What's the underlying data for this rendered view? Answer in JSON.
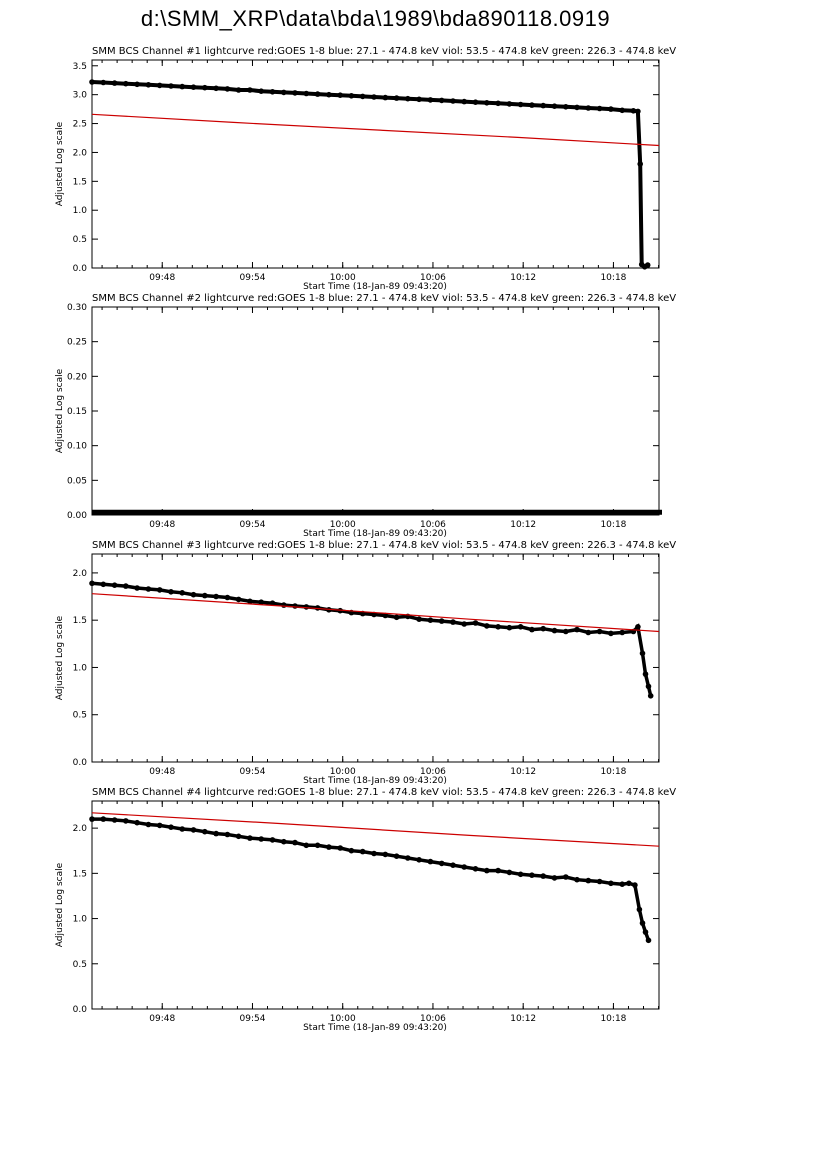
{
  "page": {
    "title": "d:\\SMM_XRP\\data\\bda\\1989\\bda890118.0919"
  },
  "colors": {
    "series_black": "#000000",
    "series_red": "#cc0000",
    "background": "#ffffff"
  },
  "chart_data": [
    {
      "type": "line",
      "title": "SMM BCS Channel #1 lightcurve  red:GOES 1-8  blue: 27.1 - 474.8 keV  viol: 53.5 - 474.8 keV  green: 226.3 - 474.8 keV",
      "xlabel": "Start Time (18-Jan-89 09:43:20)",
      "ylabel": "Adjusted Log scale",
      "xlim": [
        0,
        37.7
      ],
      "ylim": [
        0,
        3.6
      ],
      "xticks": [
        {
          "pos": 4.67,
          "label": "09:48"
        },
        {
          "pos": 10.67,
          "label": "09:54"
        },
        {
          "pos": 16.67,
          "label": "10:00"
        },
        {
          "pos": 22.67,
          "label": "10:06"
        },
        {
          "pos": 28.67,
          "label": "10:12"
        },
        {
          "pos": 34.67,
          "label": "10:18"
        }
      ],
      "yticks": [
        {
          "pos": 0.0,
          "label": "0.0"
        },
        {
          "pos": 0.5,
          "label": "0.5"
        },
        {
          "pos": 1.0,
          "label": "1.0"
        },
        {
          "pos": 1.5,
          "label": "1.5"
        },
        {
          "pos": 2.0,
          "label": "2.0"
        },
        {
          "pos": 2.5,
          "label": "2.5"
        },
        {
          "pos": 3.0,
          "label": "3.0"
        },
        {
          "pos": 3.5,
          "label": "3.5"
        }
      ],
      "series": [
        {
          "name": "bcs-lightcurve",
          "color": "#000000",
          "width": 4,
          "markers": true,
          "points": [
            [
              0,
              3.22
            ],
            [
              0.75,
              3.21
            ],
            [
              1.5,
              3.2
            ],
            [
              2.25,
              3.19
            ],
            [
              3,
              3.18
            ],
            [
              3.75,
              3.17
            ],
            [
              4.5,
              3.16
            ],
            [
              5.25,
              3.15
            ],
            [
              6,
              3.14
            ],
            [
              6.75,
              3.13
            ],
            [
              7.5,
              3.12
            ],
            [
              8.25,
              3.11
            ],
            [
              9,
              3.1
            ],
            [
              9.75,
              3.08
            ],
            [
              10.5,
              3.08
            ],
            [
              11.25,
              3.06
            ],
            [
              12,
              3.05
            ],
            [
              12.75,
              3.04
            ],
            [
              13.5,
              3.03
            ],
            [
              14.25,
              3.02
            ],
            [
              15,
              3.01
            ],
            [
              15.75,
              3.0
            ],
            [
              16.5,
              2.99
            ],
            [
              17.25,
              2.98
            ],
            [
              18,
              2.97
            ],
            [
              18.75,
              2.96
            ],
            [
              19.5,
              2.95
            ],
            [
              20.25,
              2.94
            ],
            [
              21,
              2.93
            ],
            [
              21.75,
              2.92
            ],
            [
              22.5,
              2.91
            ],
            [
              23.25,
              2.9
            ],
            [
              24,
              2.89
            ],
            [
              24.75,
              2.88
            ],
            [
              25.5,
              2.87
            ],
            [
              26.25,
              2.86
            ],
            [
              27,
              2.85
            ],
            [
              27.75,
              2.84
            ],
            [
              28.5,
              2.83
            ],
            [
              29.25,
              2.82
            ],
            [
              30,
              2.81
            ],
            [
              30.75,
              2.8
            ],
            [
              31.5,
              2.79
            ],
            [
              32.25,
              2.78
            ],
            [
              33,
              2.77
            ],
            [
              33.75,
              2.76
            ],
            [
              34.5,
              2.75
            ],
            [
              35.25,
              2.73
            ],
            [
              36,
              2.72
            ],
            [
              36.3,
              2.71
            ],
            [
              36.45,
              1.8
            ],
            [
              36.55,
              0.06
            ],
            [
              36.75,
              0.02
            ],
            [
              36.95,
              0.05
            ]
          ]
        },
        {
          "name": "goes-1-8",
          "color": "#cc0000",
          "width": 1.2,
          "markers": false,
          "points": [
            [
              0,
              2.66
            ],
            [
              9.4,
              2.52
            ],
            [
              18.8,
              2.39
            ],
            [
              28.3,
              2.26
            ],
            [
              37.7,
              2.12
            ]
          ]
        }
      ]
    },
    {
      "type": "line",
      "title": "SMM BCS Channel #2 lightcurve  red:GOES 1-8  blue: 27.1 - 474.8 keV  viol: 53.5 - 474.8 keV  green: 226.3 - 474.8 keV",
      "xlabel": "Start Time (18-Jan-89 09:43:20)",
      "ylabel": "Adjusted Log scale",
      "xlim": [
        0,
        37.7
      ],
      "ylim": [
        0,
        0.3
      ],
      "xticks": [
        {
          "pos": 4.67,
          "label": "09:48"
        },
        {
          "pos": 10.67,
          "label": "09:54"
        },
        {
          "pos": 16.67,
          "label": "10:00"
        },
        {
          "pos": 22.67,
          "label": "10:06"
        },
        {
          "pos": 28.67,
          "label": "10:12"
        },
        {
          "pos": 34.67,
          "label": "10:18"
        }
      ],
      "yticks": [
        {
          "pos": 0.0,
          "label": "0.00"
        },
        {
          "pos": 0.05,
          "label": "0.05"
        },
        {
          "pos": 0.1,
          "label": "0.10"
        },
        {
          "pos": 0.15,
          "label": "0.15"
        },
        {
          "pos": 0.2,
          "label": "0.20"
        },
        {
          "pos": 0.25,
          "label": "0.25"
        },
        {
          "pos": 0.3,
          "label": "0.30"
        }
      ],
      "series": [
        {
          "name": "bcs-lightcurve",
          "color": "#000000",
          "width": 5,
          "markers": false,
          "points": [
            [
              0,
              0.004
            ],
            [
              37.9,
              0.004
            ]
          ]
        }
      ]
    },
    {
      "type": "line",
      "title": "SMM BCS Channel #3 lightcurve  red:GOES 1-8  blue: 27.1 - 474.8 keV  viol: 53.5 - 474.8 keV  green: 226.3 - 474.8 keV",
      "xlabel": "Start Time (18-Jan-89 09:43:20)",
      "ylabel": "Adjusted Log scale",
      "xlim": [
        0,
        37.7
      ],
      "ylim": [
        0,
        2.2
      ],
      "xticks": [
        {
          "pos": 4.67,
          "label": "09:48"
        },
        {
          "pos": 10.67,
          "label": "09:54"
        },
        {
          "pos": 16.67,
          "label": "10:00"
        },
        {
          "pos": 22.67,
          "label": "10:06"
        },
        {
          "pos": 28.67,
          "label": "10:12"
        },
        {
          "pos": 34.67,
          "label": "10:18"
        }
      ],
      "yticks": [
        {
          "pos": 0.0,
          "label": "0.0"
        },
        {
          "pos": 0.5,
          "label": "0.5"
        },
        {
          "pos": 1.0,
          "label": "1.0"
        },
        {
          "pos": 1.5,
          "label": "1.5"
        },
        {
          "pos": 2.0,
          "label": "2.0"
        }
      ],
      "series": [
        {
          "name": "bcs-lightcurve",
          "color": "#000000",
          "width": 3.5,
          "markers": true,
          "points": [
            [
              0,
              1.89
            ],
            [
              0.75,
              1.88
            ],
            [
              1.5,
              1.87
            ],
            [
              2.25,
              1.86
            ],
            [
              3,
              1.84
            ],
            [
              3.75,
              1.83
            ],
            [
              4.5,
              1.82
            ],
            [
              5.25,
              1.8
            ],
            [
              6,
              1.79
            ],
            [
              6.75,
              1.77
            ],
            [
              7.5,
              1.76
            ],
            [
              8.25,
              1.75
            ],
            [
              9,
              1.74
            ],
            [
              9.75,
              1.72
            ],
            [
              10.5,
              1.7
            ],
            [
              11.25,
              1.69
            ],
            [
              12,
              1.68
            ],
            [
              12.75,
              1.66
            ],
            [
              13.5,
              1.65
            ],
            [
              14.25,
              1.64
            ],
            [
              15,
              1.63
            ],
            [
              15.75,
              1.61
            ],
            [
              16.5,
              1.6
            ],
            [
              17.25,
              1.58
            ],
            [
              18,
              1.57
            ],
            [
              18.75,
              1.56
            ],
            [
              19.5,
              1.55
            ],
            [
              20.25,
              1.53
            ],
            [
              21,
              1.54
            ],
            [
              21.75,
              1.51
            ],
            [
              22.5,
              1.5
            ],
            [
              23.25,
              1.49
            ],
            [
              24,
              1.48
            ],
            [
              24.75,
              1.46
            ],
            [
              25.5,
              1.47
            ],
            [
              26.25,
              1.44
            ],
            [
              27,
              1.43
            ],
            [
              27.75,
              1.42
            ],
            [
              28.5,
              1.43
            ],
            [
              29.25,
              1.4
            ],
            [
              30,
              1.41
            ],
            [
              30.75,
              1.39
            ],
            [
              31.5,
              1.38
            ],
            [
              32.25,
              1.4
            ],
            [
              33,
              1.37
            ],
            [
              33.75,
              1.38
            ],
            [
              34.5,
              1.36
            ],
            [
              35.25,
              1.37
            ],
            [
              36,
              1.38
            ],
            [
              36.3,
              1.43
            ],
            [
              36.6,
              1.15
            ],
            [
              36.8,
              0.93
            ],
            [
              37,
              0.8
            ],
            [
              37.15,
              0.7
            ]
          ]
        },
        {
          "name": "goes-1-8",
          "color": "#cc0000",
          "width": 1.2,
          "markers": false,
          "points": [
            [
              0,
              1.78
            ],
            [
              12.6,
              1.65
            ],
            [
              25.1,
              1.51
            ],
            [
              37.7,
              1.38
            ]
          ]
        }
      ]
    },
    {
      "type": "line",
      "title": "SMM BCS Channel #4 lightcurve  red:GOES 1-8  blue: 27.1 - 474.8 keV  viol: 53.5 - 474.8 keV  green: 226.3 - 474.8 keV",
      "xlabel": "Start Time (18-Jan-89 09:43:20)",
      "ylabel": "Adjusted Log scale",
      "xlim": [
        0,
        37.7
      ],
      "ylim": [
        0,
        2.3
      ],
      "xticks": [
        {
          "pos": 4.67,
          "label": "09:48"
        },
        {
          "pos": 10.67,
          "label": "09:54"
        },
        {
          "pos": 16.67,
          "label": "10:00"
        },
        {
          "pos": 22.67,
          "label": "10:06"
        },
        {
          "pos": 28.67,
          "label": "10:12"
        },
        {
          "pos": 34.67,
          "label": "10:18"
        }
      ],
      "yticks": [
        {
          "pos": 0.0,
          "label": "0.0"
        },
        {
          "pos": 0.5,
          "label": "0.5"
        },
        {
          "pos": 1.0,
          "label": "1.0"
        },
        {
          "pos": 1.5,
          "label": "1.5"
        },
        {
          "pos": 2.0,
          "label": "2.0"
        }
      ],
      "series": [
        {
          "name": "bcs-lightcurve",
          "color": "#000000",
          "width": 3.5,
          "markers": true,
          "points": [
            [
              0,
              2.1
            ],
            [
              0.75,
              2.1
            ],
            [
              1.5,
              2.09
            ],
            [
              2.25,
              2.08
            ],
            [
              3,
              2.06
            ],
            [
              3.75,
              2.04
            ],
            [
              4.5,
              2.03
            ],
            [
              5.25,
              2.01
            ],
            [
              6,
              1.99
            ],
            [
              6.75,
              1.98
            ],
            [
              7.5,
              1.96
            ],
            [
              8.25,
              1.94
            ],
            [
              9,
              1.93
            ],
            [
              9.75,
              1.91
            ],
            [
              10.5,
              1.89
            ],
            [
              11.25,
              1.88
            ],
            [
              12,
              1.87
            ],
            [
              12.75,
              1.85
            ],
            [
              13.5,
              1.84
            ],
            [
              14.25,
              1.81
            ],
            [
              15,
              1.81
            ],
            [
              15.75,
              1.79
            ],
            [
              16.5,
              1.78
            ],
            [
              17.25,
              1.75
            ],
            [
              18,
              1.74
            ],
            [
              18.75,
              1.72
            ],
            [
              19.5,
              1.71
            ],
            [
              20.25,
              1.69
            ],
            [
              21,
              1.67
            ],
            [
              21.75,
              1.65
            ],
            [
              22.5,
              1.63
            ],
            [
              23.25,
              1.61
            ],
            [
              24,
              1.59
            ],
            [
              24.75,
              1.57
            ],
            [
              25.5,
              1.55
            ],
            [
              26.25,
              1.53
            ],
            [
              27,
              1.53
            ],
            [
              27.75,
              1.51
            ],
            [
              28.5,
              1.49
            ],
            [
              29.25,
              1.48
            ],
            [
              30,
              1.47
            ],
            [
              30.75,
              1.45
            ],
            [
              31.5,
              1.46
            ],
            [
              32.25,
              1.43
            ],
            [
              33,
              1.42
            ],
            [
              33.75,
              1.41
            ],
            [
              34.5,
              1.39
            ],
            [
              35.25,
              1.38
            ],
            [
              35.7,
              1.39
            ],
            [
              36.1,
              1.37
            ],
            [
              36.4,
              1.1
            ],
            [
              36.6,
              0.95
            ],
            [
              36.8,
              0.85
            ],
            [
              37,
              0.76
            ]
          ]
        },
        {
          "name": "goes-1-8",
          "color": "#cc0000",
          "width": 1.2,
          "markers": false,
          "points": [
            [
              0,
              2.17
            ],
            [
              12.6,
              2.05
            ],
            [
              25.1,
              1.92
            ],
            [
              37.7,
              1.8
            ]
          ]
        }
      ]
    }
  ]
}
